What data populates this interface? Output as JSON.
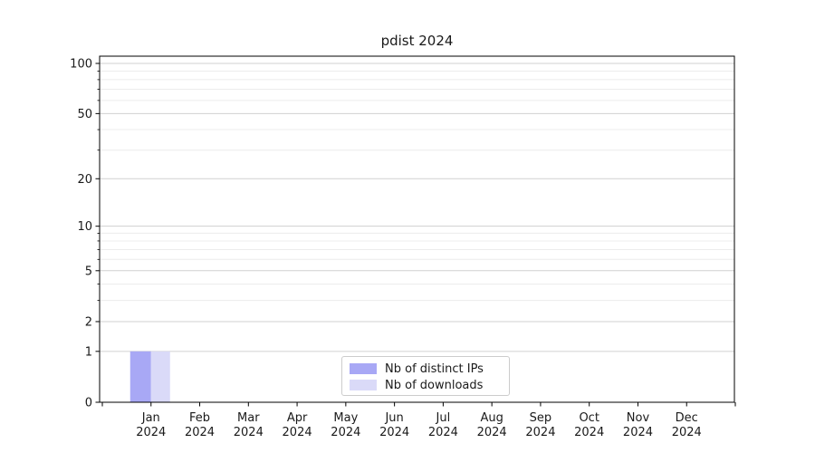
{
  "chart_data": {
    "type": "bar",
    "title": "pdist 2024",
    "categories": [
      "Jan",
      "Feb",
      "Mar",
      "Apr",
      "May",
      "Jun",
      "Jul",
      "Aug",
      "Sep",
      "Oct",
      "Nov",
      "Dec"
    ],
    "category_year": "2024",
    "series": [
      {
        "name": "Nb of distinct IPs",
        "color": "#a8a8f5",
        "values": [
          1,
          0,
          0,
          0,
          0,
          0,
          0,
          0,
          0,
          0,
          0,
          0
        ]
      },
      {
        "name": "Nb of downloads",
        "color": "#dadaf8",
        "values": [
          1,
          0,
          0,
          0,
          0,
          0,
          0,
          0,
          0,
          0,
          0,
          0
        ]
      }
    ],
    "xlabel": "",
    "ylabel": "",
    "y_axis": {
      "scale": "log1p",
      "ticks": [
        0,
        1,
        2,
        5,
        10,
        20,
        50,
        100
      ],
      "minor_ticks": [
        3,
        4,
        6,
        7,
        8,
        9,
        30,
        40,
        60,
        70,
        80,
        90
      ],
      "min": 0,
      "max": 110
    },
    "grid": {
      "major": true,
      "minor": true
    },
    "legend": {
      "position": "lower-center",
      "entries": [
        "Nb of distinct IPs",
        "Nb of downloads"
      ]
    },
    "colors": {
      "major_grid": "#d0d0d0",
      "minor_grid": "#ececec",
      "axis": "#000000",
      "text": "#1a1a1a"
    }
  }
}
